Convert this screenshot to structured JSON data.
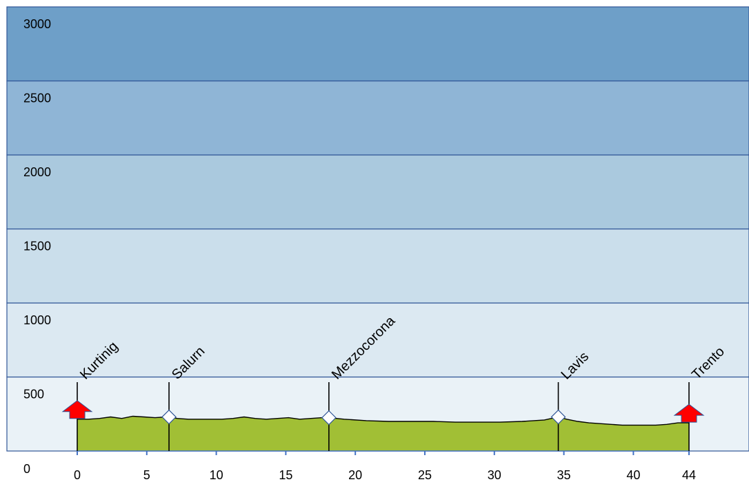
{
  "chart_data": {
    "type": "area",
    "title": "",
    "xlabel": "",
    "ylabel": "",
    "xlim": [
      0,
      44
    ],
    "ylim": [
      0,
      3000
    ],
    "y_ticks": [
      "0",
      "500",
      "1000",
      "1500",
      "2000",
      "2500",
      "3000"
    ],
    "x_ticks": [
      {
        "value": 0,
        "label": "0"
      },
      {
        "value": 5,
        "label": "5"
      },
      {
        "value": 10,
        "label": "10"
      },
      {
        "value": 15,
        "label": "15"
      },
      {
        "value": 20,
        "label": "20"
      },
      {
        "value": 25,
        "label": "25"
      },
      {
        "value": 30,
        "label": "30"
      },
      {
        "value": 35,
        "label": "35"
      },
      {
        "value": 40,
        "label": "40"
      },
      {
        "value": 44,
        "label": "44"
      }
    ],
    "band_colors": [
      "#eaf2f7",
      "#dce9f2",
      "#cadeeb",
      "#aac9de",
      "#8fb5d6",
      "#6e9fc8"
    ],
    "profile_color": "#a1bf35",
    "profile": {
      "x": [
        0,
        0.8,
        1.6,
        2.4,
        3.2,
        4.0,
        4.8,
        5.6,
        6.4,
        6.6,
        7.2,
        8.0,
        8.8,
        9.6,
        10.4,
        11.2,
        12.0,
        12.8,
        13.6,
        14.4,
        15.2,
        16.0,
        16.8,
        17.6,
        18.1,
        19.2,
        20.8,
        22.4,
        24.0,
        25.6,
        27.2,
        28.8,
        30.4,
        32.0,
        33.6,
        34.6,
        35.2,
        36.0,
        36.8,
        37.6,
        38.4,
        39.2,
        40.0,
        41.6,
        42.4,
        43.2,
        44
      ],
      "y": [
        215,
        215,
        220,
        230,
        220,
        235,
        230,
        225,
        230,
        230,
        220,
        215,
        215,
        215,
        215,
        220,
        230,
        220,
        215,
        220,
        225,
        215,
        220,
        225,
        225,
        215,
        205,
        200,
        200,
        200,
        195,
        195,
        195,
        200,
        210,
        230,
        215,
        200,
        190,
        185,
        180,
        175,
        175,
        175,
        180,
        190,
        190
      ]
    },
    "places": [
      {
        "name": "Kurtinig",
        "km": 0,
        "marker": "arrow-up"
      },
      {
        "name": "Salurn",
        "km": 6.6,
        "marker": "diamond"
      },
      {
        "name": "Mezzocorona",
        "km": 18.1,
        "marker": "diamond"
      },
      {
        "name": "Lavis",
        "km": 34.6,
        "marker": "diamond"
      },
      {
        "name": "Trento",
        "km": 44,
        "marker": "arrow-up"
      }
    ]
  }
}
